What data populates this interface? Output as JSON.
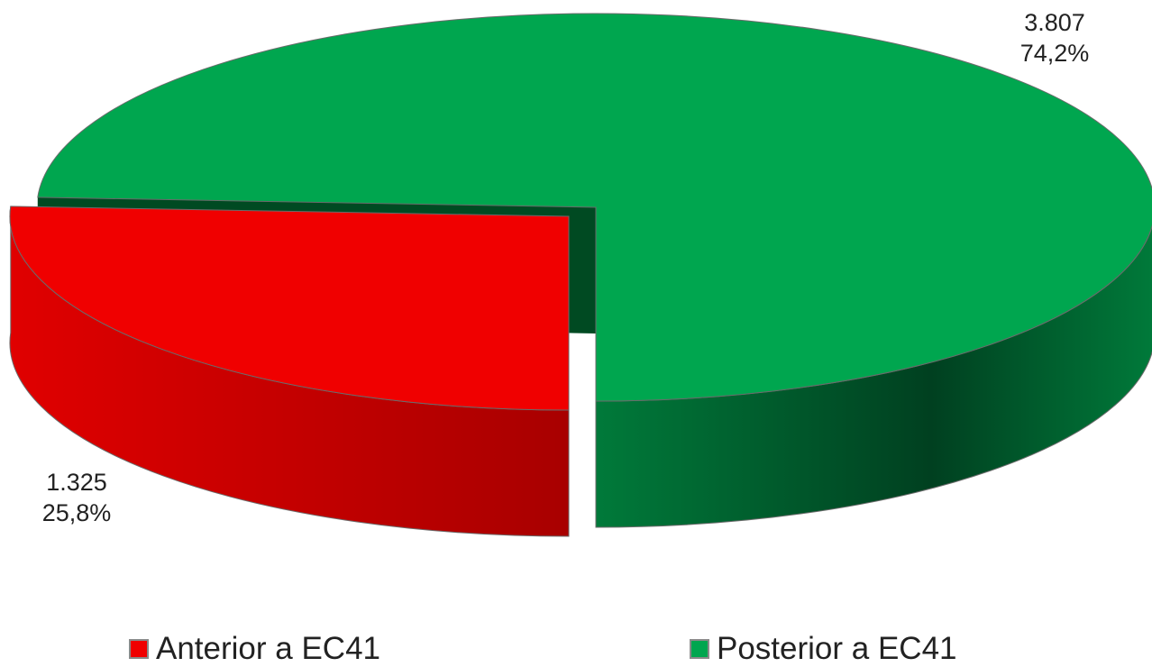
{
  "chart_data": {
    "type": "pie",
    "style": "3d-exploded",
    "title": "",
    "legend_position": "bottom",
    "slices": [
      {
        "name": "Anterior a EC41",
        "value": 1325,
        "value_label": "1.325",
        "percent_label": "25,8%",
        "color": "#f00000",
        "side_color_light": "#e00000",
        "side_color_dark": "#a80000"
      },
      {
        "name": "Posterior a EC41",
        "value": 3807,
        "value_label": "3.807",
        "percent_label": "74,2%",
        "color": "#00a64f",
        "side_color_light": "#007a3a",
        "side_color_dark": "#004020"
      }
    ]
  }
}
